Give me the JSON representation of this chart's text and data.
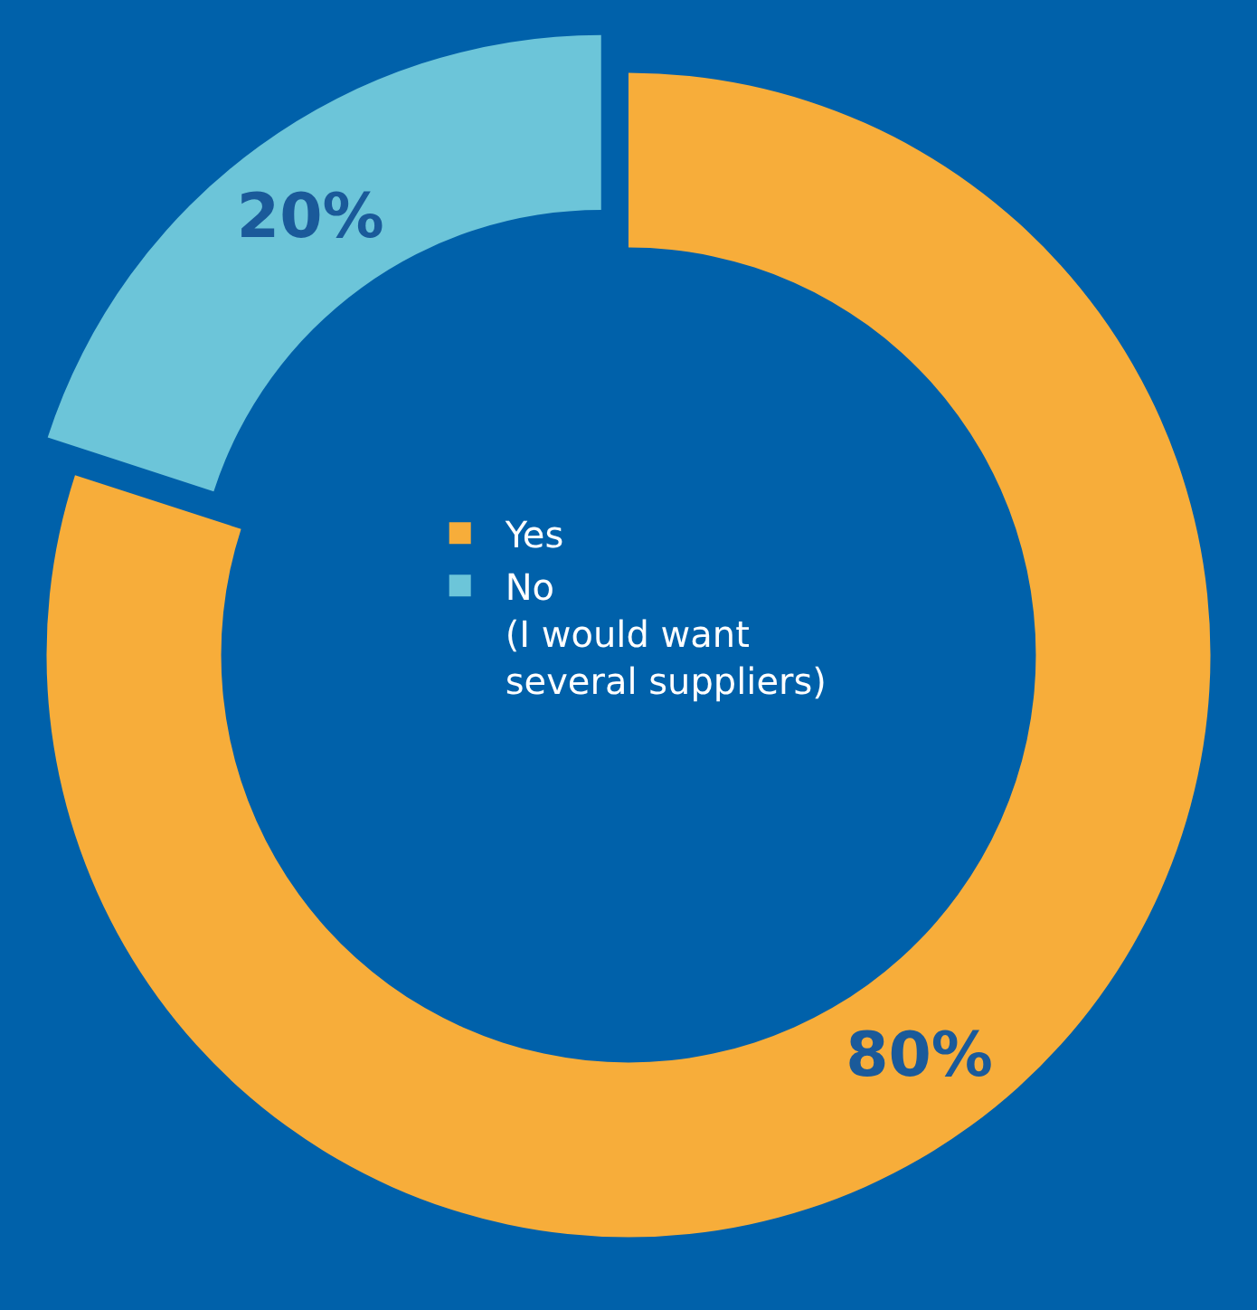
{
  "chart_data": {
    "type": "donut",
    "categories": [
      "Yes",
      "No\n(I would want\nseveral suppliers)"
    ],
    "values": [
      80,
      20
    ],
    "colors": [
      "#f7ad3a",
      "#6cc5d9"
    ],
    "value_labels": [
      "80%",
      "20%"
    ],
    "legend": "center"
  }
}
